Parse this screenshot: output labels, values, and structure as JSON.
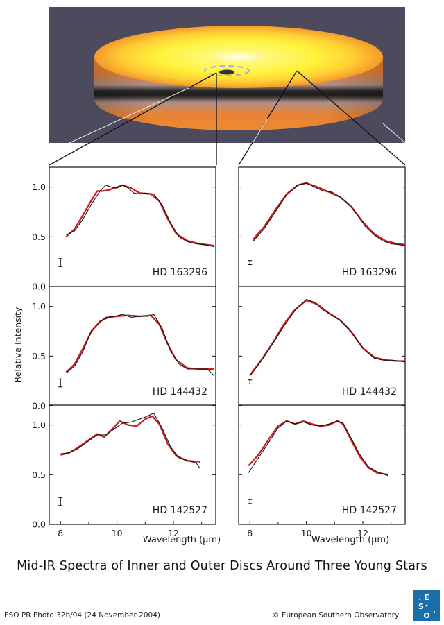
{
  "caption": "Mid-IR  Spectra of Inner and Outer Discs Around Three Young Stars",
  "credit_left": "ESO PR Photo 32b/04 (24 November 2004)",
  "credit_right": "© European Southern Observatory",
  "logo_text": "ESO",
  "colors": {
    "observed": "#111111",
    "model": "#cc1f1f",
    "background": "#4e4a5e",
    "disc_yellow": "#fff23a",
    "disc_orange": "#f08a2a"
  },
  "chart_data": {
    "type": "line",
    "xlabel": "Wavelength (µm)",
    "ylabel": "Relative Intensity",
    "xlim": [
      7.6,
      13.5
    ],
    "ylim": [
      0,
      1.2
    ],
    "x_ticks": [
      8,
      10,
      12
    ],
    "y_ticks": [
      0.0,
      0.5,
      1.0
    ],
    "y_tick_labels": [
      "0.0",
      "0.5",
      "1.0"
    ],
    "panels": [
      {
        "column": "inner",
        "row": 0,
        "star": "HD 163296",
        "errorbar": {
          "x": 8.0,
          "y": 0.24,
          "half": 0.04
        },
        "observed": [
          [
            8.2,
            0.52
          ],
          [
            8.5,
            0.56
          ],
          [
            8.8,
            0.68
          ],
          [
            9.1,
            0.83
          ],
          [
            9.4,
            0.96
          ],
          [
            9.6,
            1.02
          ],
          [
            9.8,
            1.0
          ],
          [
            10.0,
            0.99
          ],
          [
            10.2,
            1.02
          ],
          [
            10.4,
            0.99
          ],
          [
            10.6,
            0.94
          ],
          [
            10.8,
            0.93
          ],
          [
            11.0,
            0.94
          ],
          [
            11.3,
            0.93
          ],
          [
            11.6,
            0.82
          ],
          [
            11.9,
            0.64
          ],
          [
            12.2,
            0.5
          ],
          [
            12.5,
            0.45
          ],
          [
            12.8,
            0.43
          ],
          [
            13.1,
            0.42
          ],
          [
            13.45,
            0.4
          ]
        ],
        "model": [
          [
            8.2,
            0.5
          ],
          [
            8.5,
            0.58
          ],
          [
            8.8,
            0.72
          ],
          [
            9.1,
            0.87
          ],
          [
            9.3,
            0.96
          ],
          [
            9.5,
            0.96
          ],
          [
            9.7,
            0.97
          ],
          [
            10.0,
            1.0
          ],
          [
            10.2,
            1.02
          ],
          [
            10.5,
            0.99
          ],
          [
            10.8,
            0.94
          ],
          [
            11.2,
            0.93
          ],
          [
            11.5,
            0.86
          ],
          [
            11.8,
            0.68
          ],
          [
            12.1,
            0.53
          ],
          [
            12.5,
            0.46
          ],
          [
            12.9,
            0.43
          ],
          [
            13.45,
            0.41
          ]
        ]
      },
      {
        "column": "inner",
        "row": 1,
        "star": "HD 144432",
        "errorbar": {
          "x": 8.0,
          "y": 0.23,
          "half": 0.04
        },
        "observed": [
          [
            8.2,
            0.33
          ],
          [
            8.5,
            0.4
          ],
          [
            8.8,
            0.55
          ],
          [
            9.1,
            0.76
          ],
          [
            9.4,
            0.84
          ],
          [
            9.6,
            0.89
          ],
          [
            9.9,
            0.9
          ],
          [
            10.2,
            0.92
          ],
          [
            10.5,
            0.89
          ],
          [
            10.8,
            0.9
          ],
          [
            11.1,
            0.9
          ],
          [
            11.3,
            0.92
          ],
          [
            11.6,
            0.78
          ],
          [
            11.9,
            0.55
          ],
          [
            12.2,
            0.42
          ],
          [
            12.5,
            0.37
          ],
          [
            12.9,
            0.37
          ],
          [
            13.2,
            0.37
          ],
          [
            13.45,
            0.3
          ]
        ],
        "model": [
          [
            8.2,
            0.34
          ],
          [
            8.5,
            0.42
          ],
          [
            8.8,
            0.58
          ],
          [
            9.1,
            0.75
          ],
          [
            9.4,
            0.85
          ],
          [
            9.7,
            0.89
          ],
          [
            10.0,
            0.9
          ],
          [
            10.4,
            0.91
          ],
          [
            10.8,
            0.9
          ],
          [
            11.2,
            0.91
          ],
          [
            11.5,
            0.82
          ],
          [
            11.8,
            0.62
          ],
          [
            12.1,
            0.46
          ],
          [
            12.5,
            0.38
          ],
          [
            12.9,
            0.37
          ],
          [
            13.45,
            0.37
          ]
        ]
      },
      {
        "column": "inner",
        "row": 2,
        "star": "HD 142527",
        "errorbar": {
          "x": 8.0,
          "y": 0.23,
          "half": 0.04
        },
        "observed": [
          [
            8.0,
            0.71
          ],
          [
            8.3,
            0.72
          ],
          [
            8.6,
            0.76
          ],
          [
            9.0,
            0.84
          ],
          [
            9.3,
            0.9
          ],
          [
            9.6,
            0.9
          ],
          [
            9.9,
            0.96
          ],
          [
            10.2,
            1.02
          ],
          [
            10.5,
            1.03
          ],
          [
            10.8,
            1.06
          ],
          [
            11.0,
            1.08
          ],
          [
            11.3,
            1.12
          ],
          [
            11.6,
            0.97
          ],
          [
            11.9,
            0.78
          ],
          [
            12.2,
            0.67
          ],
          [
            12.5,
            0.64
          ],
          [
            12.8,
            0.62
          ],
          [
            12.95,
            0.56
          ]
        ],
        "model": [
          [
            8.0,
            0.7
          ],
          [
            8.3,
            0.72
          ],
          [
            8.6,
            0.77
          ],
          [
            9.0,
            0.85
          ],
          [
            9.3,
            0.91
          ],
          [
            9.55,
            0.88
          ],
          [
            9.8,
            0.95
          ],
          [
            10.1,
            1.04
          ],
          [
            10.4,
            1.0
          ],
          [
            10.7,
            0.99
          ],
          [
            11.0,
            1.06
          ],
          [
            11.25,
            1.09
          ],
          [
            11.5,
            1.01
          ],
          [
            11.8,
            0.81
          ],
          [
            12.1,
            0.69
          ],
          [
            12.5,
            0.64
          ],
          [
            12.95,
            0.63
          ]
        ]
      },
      {
        "column": "outer",
        "row": 0,
        "star": "HD 163296",
        "errorbar": {
          "x": 8.0,
          "y": 0.24,
          "half": 0.02
        },
        "observed": [
          [
            8.1,
            0.45
          ],
          [
            8.5,
            0.58
          ],
          [
            8.9,
            0.75
          ],
          [
            9.3,
            0.92
          ],
          [
            9.7,
            1.02
          ],
          [
            10.0,
            1.04
          ],
          [
            10.3,
            1.0
          ],
          [
            10.6,
            0.96
          ],
          [
            10.9,
            0.95
          ],
          [
            11.2,
            0.9
          ],
          [
            11.5,
            0.83
          ],
          [
            11.8,
            0.72
          ],
          [
            12.1,
            0.6
          ],
          [
            12.4,
            0.52
          ],
          [
            12.7,
            0.46
          ],
          [
            13.0,
            0.43
          ],
          [
            13.3,
            0.42
          ],
          [
            13.5,
            0.41
          ]
        ],
        "model": [
          [
            8.1,
            0.47
          ],
          [
            8.5,
            0.6
          ],
          [
            8.9,
            0.77
          ],
          [
            9.3,
            0.93
          ],
          [
            9.7,
            1.02
          ],
          [
            10.0,
            1.04
          ],
          [
            10.4,
            1.0
          ],
          [
            10.8,
            0.95
          ],
          [
            11.2,
            0.9
          ],
          [
            11.6,
            0.8
          ],
          [
            12.0,
            0.65
          ],
          [
            12.4,
            0.53
          ],
          [
            12.8,
            0.46
          ],
          [
            13.2,
            0.43
          ],
          [
            13.5,
            0.42
          ]
        ]
      },
      {
        "column": "outer",
        "row": 1,
        "star": "HD 144432",
        "errorbar": {
          "x": 8.0,
          "y": 0.24,
          "half": 0.02
        },
        "observed": [
          [
            8.0,
            0.3
          ],
          [
            8.4,
            0.45
          ],
          [
            8.8,
            0.62
          ],
          [
            9.2,
            0.8
          ],
          [
            9.6,
            0.96
          ],
          [
            10.0,
            1.07
          ],
          [
            10.3,
            1.04
          ],
          [
            10.6,
            0.96
          ],
          [
            10.9,
            0.92
          ],
          [
            11.2,
            0.86
          ],
          [
            11.5,
            0.78
          ],
          [
            11.8,
            0.66
          ],
          [
            12.1,
            0.55
          ],
          [
            12.4,
            0.48
          ],
          [
            12.7,
            0.46
          ],
          [
            13.0,
            0.46
          ],
          [
            13.3,
            0.45
          ],
          [
            13.5,
            0.44
          ]
        ],
        "model": [
          [
            8.0,
            0.31
          ],
          [
            8.4,
            0.46
          ],
          [
            8.8,
            0.63
          ],
          [
            9.2,
            0.82
          ],
          [
            9.6,
            0.97
          ],
          [
            10.0,
            1.06
          ],
          [
            10.4,
            1.02
          ],
          [
            10.8,
            0.93
          ],
          [
            11.2,
            0.86
          ],
          [
            11.6,
            0.74
          ],
          [
            12.0,
            0.58
          ],
          [
            12.4,
            0.49
          ],
          [
            12.8,
            0.46
          ],
          [
            13.2,
            0.45
          ],
          [
            13.5,
            0.45
          ]
        ]
      },
      {
        "column": "outer",
        "row": 2,
        "star": "HD 142527",
        "errorbar": {
          "x": 8.0,
          "y": 0.23,
          "half": 0.02
        },
        "observed": [
          [
            7.95,
            0.52
          ],
          [
            8.3,
            0.67
          ],
          [
            8.7,
            0.84
          ],
          [
            9.0,
            0.97
          ],
          [
            9.3,
            1.04
          ],
          [
            9.6,
            1.01
          ],
          [
            9.9,
            1.03
          ],
          [
            10.2,
            1.0
          ],
          [
            10.5,
            0.99
          ],
          [
            10.8,
            1.01
          ],
          [
            11.1,
            1.04
          ],
          [
            11.3,
            1.02
          ],
          [
            11.6,
            0.86
          ],
          [
            11.9,
            0.7
          ],
          [
            12.2,
            0.58
          ],
          [
            12.5,
            0.53
          ],
          [
            12.9,
            0.49
          ]
        ],
        "model": [
          [
            7.95,
            0.59
          ],
          [
            8.3,
            0.7
          ],
          [
            8.7,
            0.87
          ],
          [
            9.0,
            0.99
          ],
          [
            9.3,
            1.04
          ],
          [
            9.6,
            1.01
          ],
          [
            9.9,
            1.04
          ],
          [
            10.2,
            1.01
          ],
          [
            10.5,
            0.99
          ],
          [
            10.8,
            1.0
          ],
          [
            11.1,
            1.04
          ],
          [
            11.3,
            1.01
          ],
          [
            11.6,
            0.84
          ],
          [
            11.9,
            0.68
          ],
          [
            12.2,
            0.57
          ],
          [
            12.5,
            0.52
          ],
          [
            12.9,
            0.5
          ]
        ]
      }
    ]
  }
}
